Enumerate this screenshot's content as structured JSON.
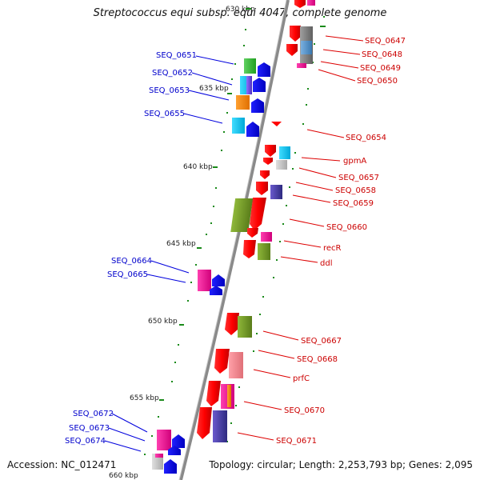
{
  "title": "Streptococcus equi subsp. equi 4047, complete genome",
  "accession_text": "Accession: NC_012471",
  "summary_text": "Topology: circular; Length: 2,253,793 bp; Genes: 2,095",
  "colors": {
    "backbone": "#808080",
    "left_label": "#0000cc",
    "right_label": "#cc0000",
    "tick": "#2a7a2a"
  },
  "kbp_ticks": [
    {
      "label": "630 kbp"
    },
    {
      "label": "635 kbp"
    },
    {
      "label": "640 kbp"
    },
    {
      "label": "645 kbp"
    },
    {
      "label": "650 kbp"
    },
    {
      "label": "655 kbp"
    },
    {
      "label": "660 kbp"
    }
  ],
  "genes_left": [
    {
      "label": "SEQ_0651"
    },
    {
      "label": "SEQ_0652"
    },
    {
      "label": "SEQ_0653"
    },
    {
      "label": "SEQ_0655"
    },
    {
      "label": "SEQ_0664"
    },
    {
      "label": "SEQ_0665"
    },
    {
      "label": "SEQ_0672"
    },
    {
      "label": "SEQ_0673"
    },
    {
      "label": "SEQ_0674"
    }
  ],
  "genes_right": [
    {
      "label": "SEQ_0647"
    },
    {
      "label": "SEQ_0648"
    },
    {
      "label": "SEQ_0649"
    },
    {
      "label": "SEQ_0650"
    },
    {
      "label": "SEQ_0654"
    },
    {
      "label": "gpmA"
    },
    {
      "label": "SEQ_0657"
    },
    {
      "label": "SEQ_0658"
    },
    {
      "label": "SEQ_0659"
    },
    {
      "label": "SEQ_0660"
    },
    {
      "label": "recR"
    },
    {
      "label": "ddl"
    },
    {
      "label": "SEQ_0667"
    },
    {
      "label": "SEQ_0668"
    },
    {
      "label": "prfC"
    },
    {
      "label": "SEQ_0670"
    },
    {
      "label": "SEQ_0671"
    }
  ]
}
